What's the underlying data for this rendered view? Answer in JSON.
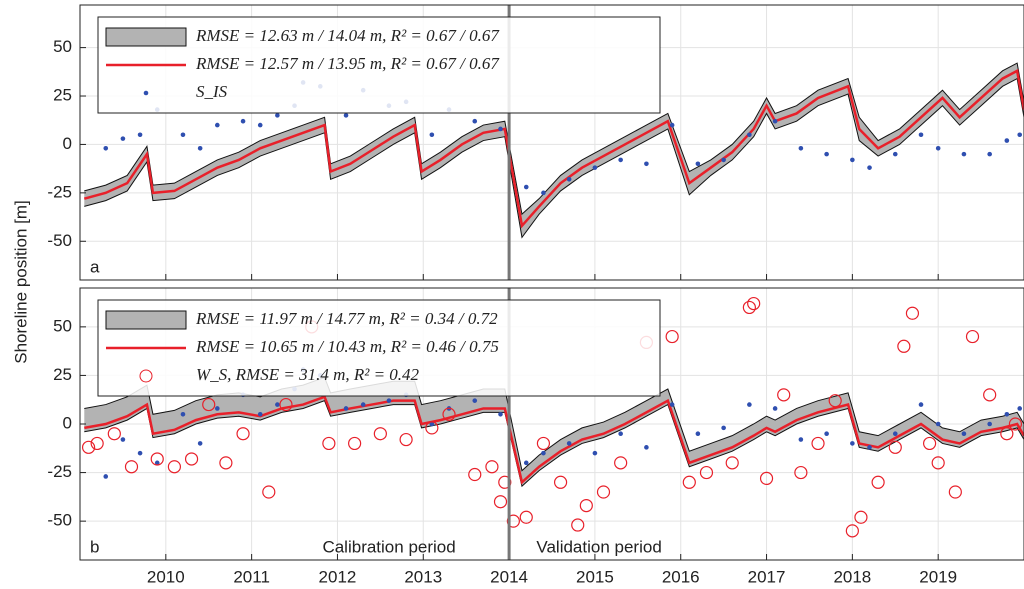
{
  "ylabel": "Shoreline position [m]",
  "chart_data": [
    {
      "type": "line",
      "panel_label": "a",
      "xlim": [
        2009,
        2020
      ],
      "ylim": [
        -70,
        72
      ],
      "xticks": [
        2010,
        2011,
        2012,
        2013,
        2014,
        2015,
        2016,
        2017,
        2018,
        2019
      ],
      "xtick_labels": false,
      "yticks": [
        -50,
        -25,
        0,
        25,
        50
      ],
      "grid": true,
      "divider": 2014,
      "series": [
        {
          "kind": "band",
          "name": "RMSE = 12.63 m / 14.04 m,   R² = 0.67 / 0.67",
          "color": "#b3b3b3",
          "x": [
            2009.05,
            2009.3,
            2009.55,
            2009.78,
            2009.85,
            2010.1,
            2010.35,
            2010.6,
            2010.85,
            2011.1,
            2011.35,
            2011.6,
            2011.85,
            2011.92,
            2012.15,
            2012.4,
            2012.65,
            2012.9,
            2012.98,
            2013.2,
            2013.45,
            2013.7,
            2013.95,
            2014.15,
            2014.35,
            2014.6,
            2014.85,
            2015.1,
            2015.35,
            2015.6,
            2015.85,
            2016.1,
            2016.35,
            2016.6,
            2016.85,
            2017.0,
            2017.1,
            2017.35,
            2017.6,
            2017.95,
            2018.08,
            2018.3,
            2018.55,
            2018.8,
            2019.05,
            2019.25,
            2019.5,
            2019.75,
            2019.92,
            2020.0
          ],
          "lower": [
            -32,
            -29,
            -24,
            -9,
            -29,
            -28,
            -22,
            -16,
            -12,
            -6,
            -2,
            2,
            6,
            -18,
            -14,
            -7,
            0,
            6,
            -18,
            -12,
            -4,
            2,
            4,
            -48,
            -36,
            -24,
            -16,
            -10,
            -4,
            2,
            8,
            -26,
            -16,
            -8,
            4,
            16,
            8,
            12,
            20,
            26,
            2,
            -6,
            0,
            10,
            20,
            10,
            20,
            30,
            34,
            14
          ],
          "upper": [
            -24,
            -21,
            -16,
            -1,
            -21,
            -20,
            -14,
            -8,
            -4,
            2,
            6,
            10,
            14,
            -10,
            -6,
            1,
            8,
            14,
            -10,
            -4,
            4,
            10,
            12,
            -36,
            -28,
            -16,
            -8,
            -2,
            4,
            10,
            16,
            -14,
            -8,
            0,
            12,
            24,
            16,
            20,
            28,
            34,
            14,
            2,
            8,
            18,
            28,
            18,
            28,
            38,
            42,
            22
          ]
        },
        {
          "kind": "line",
          "name": "RMSE = 12.57 m / 13.95 m,    R² = 0.67 / 0.67",
          "color": "#e8202a",
          "x": [
            2009.05,
            2009.3,
            2009.55,
            2009.78,
            2009.85,
            2010.1,
            2010.35,
            2010.6,
            2010.85,
            2011.1,
            2011.35,
            2011.6,
            2011.85,
            2011.92,
            2012.15,
            2012.4,
            2012.65,
            2012.9,
            2012.98,
            2013.2,
            2013.45,
            2013.7,
            2013.95,
            2014.15,
            2014.35,
            2014.6,
            2014.85,
            2015.1,
            2015.35,
            2015.6,
            2015.85,
            2016.1,
            2016.35,
            2016.6,
            2016.85,
            2017.0,
            2017.1,
            2017.35,
            2017.6,
            2017.95,
            2018.08,
            2018.3,
            2018.55,
            2018.8,
            2019.05,
            2019.25,
            2019.5,
            2019.75,
            2019.92,
            2020.0
          ],
          "values": [
            -28,
            -25,
            -20,
            -5,
            -25,
            -24,
            -18,
            -12,
            -8,
            -2,
            2,
            6,
            10,
            -14,
            -10,
            -3,
            4,
            10,
            -14,
            -8,
            0,
            6,
            8,
            -42,
            -32,
            -20,
            -12,
            -6,
            0,
            6,
            12,
            -20,
            -12,
            -4,
            8,
            20,
            12,
            16,
            24,
            30,
            8,
            -2,
            4,
            14,
            24,
            14,
            24,
            34,
            38,
            18
          ]
        },
        {
          "kind": "dots",
          "name": "S_IS",
          "color": "#2f4fb0",
          "x": [
            2009.3,
            2009.5,
            2009.7,
            2009.9,
            2010.2,
            2010.4,
            2010.6,
            2010.9,
            2011.1,
            2011.3,
            2011.5,
            2011.6,
            2011.8,
            2012.1,
            2012.3,
            2012.6,
            2012.8,
            2013.1,
            2013.3,
            2013.6,
            2013.9,
            2014.2,
            2014.4,
            2014.7,
            2015.0,
            2015.3,
            2015.6,
            2015.9,
            2016.2,
            2016.5,
            2016.8,
            2017.1,
            2017.4,
            2017.7,
            2018.0,
            2018.2,
            2018.5,
            2018.8,
            2019.0,
            2019.3,
            2019.6,
            2019.8,
            2019.95
          ],
          "values": [
            -2,
            3,
            5,
            18,
            5,
            -2,
            10,
            12,
            10,
            15,
            20,
            32,
            30,
            15,
            28,
            20,
            22,
            5,
            18,
            12,
            8,
            -22,
            -25,
            -18,
            -12,
            -8,
            -10,
            10,
            -10,
            -8,
            5,
            12,
            -2,
            -5,
            -8,
            -12,
            -5,
            5,
            -2,
            -5,
            -5,
            2,
            5
          ]
        }
      ]
    },
    {
      "type": "line",
      "panel_label": "b",
      "xlim": [
        2009,
        2020
      ],
      "ylim": [
        -70,
        70
      ],
      "xticks": [
        2010,
        2011,
        2012,
        2013,
        2014,
        2015,
        2016,
        2017,
        2018,
        2019
      ],
      "xtick_labels": true,
      "yticks": [
        -50,
        -25,
        0,
        25,
        50
      ],
      "grid": true,
      "divider": 2014,
      "annotations": [
        "Calibration period",
        "Validation period"
      ],
      "series": [
        {
          "kind": "band",
          "name": "RMSE = 11.97 m / 14.77 m,    R² = 0.34 / 0.72",
          "color": "#b3b3b3",
          "x": [
            2009.05,
            2009.3,
            2009.55,
            2009.78,
            2009.85,
            2010.1,
            2010.35,
            2010.6,
            2010.85,
            2011.1,
            2011.35,
            2011.6,
            2011.85,
            2011.92,
            2012.15,
            2012.4,
            2012.65,
            2012.9,
            2012.98,
            2013.2,
            2013.45,
            2013.7,
            2013.95,
            2014.15,
            2014.35,
            2014.6,
            2014.85,
            2015.1,
            2015.35,
            2015.6,
            2015.85,
            2016.1,
            2016.35,
            2016.6,
            2016.85,
            2017.0,
            2017.1,
            2017.35,
            2017.6,
            2017.95,
            2018.08,
            2018.3,
            2018.55,
            2018.8,
            2019.05,
            2019.25,
            2019.5,
            2019.75,
            2019.92,
            2020.0
          ],
          "lower": [
            -4,
            -2,
            2,
            8,
            -7,
            -5,
            0,
            3,
            4,
            2,
            6,
            8,
            12,
            4,
            6,
            8,
            10,
            10,
            -2,
            0,
            3,
            6,
            6,
            -32,
            -24,
            -16,
            -10,
            -7,
            -2,
            4,
            10,
            -22,
            -18,
            -14,
            -8,
            -4,
            -6,
            0,
            4,
            8,
            -12,
            -14,
            -8,
            -2,
            -10,
            -12,
            -6,
            -4,
            -2,
            -8
          ],
          "upper": [
            8,
            10,
            14,
            20,
            5,
            7,
            12,
            15,
            16,
            14,
            18,
            20,
            24,
            16,
            18,
            20,
            22,
            22,
            10,
            12,
            15,
            18,
            18,
            -24,
            -16,
            -8,
            -2,
            1,
            6,
            12,
            18,
            -14,
            -10,
            -6,
            0,
            4,
            2,
            8,
            12,
            16,
            -4,
            -6,
            0,
            6,
            -2,
            -4,
            2,
            4,
            6,
            0
          ]
        },
        {
          "kind": "line",
          "name": "RMSE = 10.65 m / 10.43 m,    R² = 0.46 / 0.75",
          "color": "#e8202a",
          "x": [
            2009.05,
            2009.3,
            2009.55,
            2009.78,
            2009.85,
            2010.1,
            2010.35,
            2010.6,
            2010.85,
            2011.1,
            2011.35,
            2011.6,
            2011.85,
            2011.92,
            2012.15,
            2012.4,
            2012.65,
            2012.9,
            2012.98,
            2013.2,
            2013.45,
            2013.7,
            2013.95,
            2014.15,
            2014.35,
            2014.6,
            2014.85,
            2015.1,
            2015.35,
            2015.6,
            2015.85,
            2016.1,
            2016.35,
            2016.6,
            2016.85,
            2017.0,
            2017.1,
            2017.35,
            2017.6,
            2017.95,
            2018.08,
            2018.3,
            2018.55,
            2018.8,
            2019.05,
            2019.25,
            2019.5,
            2019.75,
            2019.92,
            2020.0
          ],
          "values": [
            -2,
            0,
            4,
            10,
            -5,
            -3,
            2,
            5,
            6,
            4,
            8,
            10,
            14,
            6,
            8,
            10,
            12,
            12,
            0,
            2,
            5,
            8,
            8,
            -30,
            -22,
            -14,
            -8,
            -5,
            0,
            6,
            12,
            -20,
            -16,
            -12,
            -6,
            -2,
            -4,
            2,
            6,
            10,
            -10,
            -12,
            -6,
            0,
            -8,
            -10,
            -4,
            -2,
            0,
            -6
          ]
        },
        {
          "kind": "dots",
          "color": "#2f4fb0",
          "x": [
            2009.3,
            2009.5,
            2009.7,
            2009.9,
            2010.2,
            2010.4,
            2010.6,
            2010.9,
            2011.1,
            2011.3,
            2011.5,
            2011.6,
            2011.8,
            2012.1,
            2012.3,
            2012.6,
            2012.8,
            2013.1,
            2013.3,
            2013.6,
            2013.9,
            2014.2,
            2014.4,
            2014.7,
            2015.0,
            2015.3,
            2015.6,
            2015.9,
            2016.2,
            2016.5,
            2016.8,
            2017.1,
            2017.4,
            2017.7,
            2018.0,
            2018.2,
            2018.5,
            2018.8,
            2019.0,
            2019.3,
            2019.6,
            2019.8,
            2019.95
          ],
          "values": [
            -27,
            -8,
            -15,
            -20,
            5,
            -10,
            8,
            15,
            5,
            10,
            18,
            28,
            25,
            8,
            10,
            12,
            15,
            0,
            8,
            12,
            5,
            -20,
            -15,
            -10,
            -15,
            -5,
            -12,
            10,
            -5,
            -2,
            10,
            8,
            -8,
            -5,
            -10,
            -12,
            -5,
            10,
            0,
            -5,
            0,
            5,
            8
          ]
        },
        {
          "kind": "circles",
          "name": "W_S, RMSE = 31.4 m, R² = 0.42",
          "color": "#e8202a",
          "x": [
            2009.1,
            2009.2,
            2009.4,
            2009.6,
            2009.9,
            2010.1,
            2010.3,
            2010.5,
            2010.7,
            2010.9,
            2011.2,
            2011.4,
            2011.7,
            2011.9,
            2012.2,
            2012.5,
            2012.8,
            2013.1,
            2013.3,
            2013.6,
            2013.8,
            2013.9,
            2013.95,
            2014.05,
            2014.2,
            2014.4,
            2014.6,
            2014.8,
            2014.9,
            2015.1,
            2015.3,
            2015.6,
            2015.9,
            2016.1,
            2016.3,
            2016.6,
            2016.8,
            2016.85,
            2017.0,
            2017.2,
            2017.4,
            2017.6,
            2017.8,
            2018.0,
            2018.1,
            2018.3,
            2018.5,
            2018.6,
            2018.7,
            2018.9,
            2019.0,
            2019.2,
            2019.4,
            2019.6,
            2019.8,
            2019.9
          ],
          "values": [
            -12,
            -10,
            -5,
            -22,
            -18,
            -22,
            -18,
            10,
            -20,
            -5,
            -35,
            10,
            50,
            -10,
            -10,
            -5,
            -8,
            -2,
            5,
            -26,
            -22,
            -40,
            -30,
            -50,
            -48,
            -10,
            -30,
            -52,
            -42,
            -35,
            -20,
            42,
            45,
            -30,
            -25,
            -20,
            60,
            62,
            -28,
            15,
            -25,
            -10,
            12,
            -55,
            -48,
            -30,
            -12,
            40,
            57,
            -10,
            -20,
            -35,
            45,
            15,
            -5,
            0
          ]
        }
      ]
    }
  ]
}
